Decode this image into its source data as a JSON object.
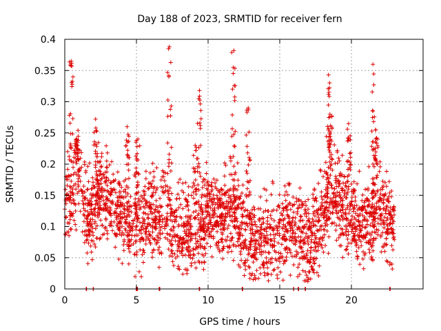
{
  "chart_data": {
    "type": "scatter",
    "title": "Day 188 of 2023, SRMTID for receiver fern",
    "xlabel": "GPS time / hours",
    "ylabel": "SRMTID / TECUs",
    "xlim": [
      0,
      25
    ],
    "ylim": [
      0,
      0.4
    ],
    "x_ticks": [
      0,
      5,
      10,
      15,
      20
    ],
    "x_tick_labels": [
      "0",
      "5",
      "10",
      "15",
      "20"
    ],
    "y_ticks": [
      0,
      0.05,
      0.1,
      0.15,
      0.2,
      0.25,
      0.3,
      0.35,
      0.4
    ],
    "y_tick_labels": [
      "0",
      "0.05",
      "0.1",
      "0.15",
      "0.2",
      "0.25",
      "0.3",
      "0.35",
      "0.4"
    ],
    "grid": true,
    "marker": "plus",
    "color": "#dd0000",
    "zero_markers_x": [
      1.5,
      2.0,
      5.0,
      5.05,
      6.6,
      9.4,
      12.4,
      16.0,
      16.3,
      16.8,
      22.7
    ],
    "baseline_profile": {
      "x": [
        0.0,
        0.5,
        1.0,
        1.5,
        2.0,
        2.5,
        3.0,
        3.5,
        4.0,
        4.5,
        5.0,
        5.5,
        6.0,
        6.5,
        7.0,
        7.5,
        8.0,
        8.5,
        9.0,
        9.5,
        10.0,
        10.5,
        11.0,
        11.5,
        12.0,
        12.5,
        13.0,
        13.5,
        14.0,
        14.5,
        15.0,
        15.5,
        16.0,
        16.5,
        17.0,
        17.5,
        18.0,
        18.5,
        19.0,
        19.5,
        20.0,
        20.5,
        21.0,
        21.5,
        22.0,
        22.5,
        23.0
      ],
      "y": [
        0.14,
        0.15,
        0.19,
        0.11,
        0.13,
        0.15,
        0.14,
        0.12,
        0.12,
        0.1,
        0.11,
        0.11,
        0.12,
        0.11,
        0.12,
        0.09,
        0.09,
        0.09,
        0.09,
        0.1,
        0.13,
        0.12,
        0.11,
        0.13,
        0.12,
        0.09,
        0.08,
        0.08,
        0.07,
        0.08,
        0.09,
        0.1,
        0.1,
        0.08,
        0.07,
        0.08,
        0.12,
        0.14,
        0.15,
        0.13,
        0.11,
        0.1,
        0.11,
        0.11,
        0.14,
        0.1,
        0.1
      ],
      "spread": 0.035
    },
    "spikes": [
      {
        "x": 0.45,
        "peak": 0.365
      },
      {
        "x": 0.8,
        "peak": 0.24
      },
      {
        "x": 2.15,
        "peak": 0.272
      },
      {
        "x": 4.35,
        "peak": 0.26
      },
      {
        "x": 5.1,
        "peak": 0.24
      },
      {
        "x": 7.3,
        "peak": 0.388
      },
      {
        "x": 9.4,
        "peak": 0.318
      },
      {
        "x": 9.1,
        "peak": 0.23
      },
      {
        "x": 11.8,
        "peak": 0.382
      },
      {
        "x": 12.8,
        "peak": 0.29
      },
      {
        "x": 18.4,
        "peak": 0.343
      },
      {
        "x": 18.5,
        "peak": 0.28
      },
      {
        "x": 21.5,
        "peak": 0.36
      },
      {
        "x": 21.7,
        "peak": 0.255
      },
      {
        "x": 19.8,
        "peak": 0.265
      }
    ]
  }
}
